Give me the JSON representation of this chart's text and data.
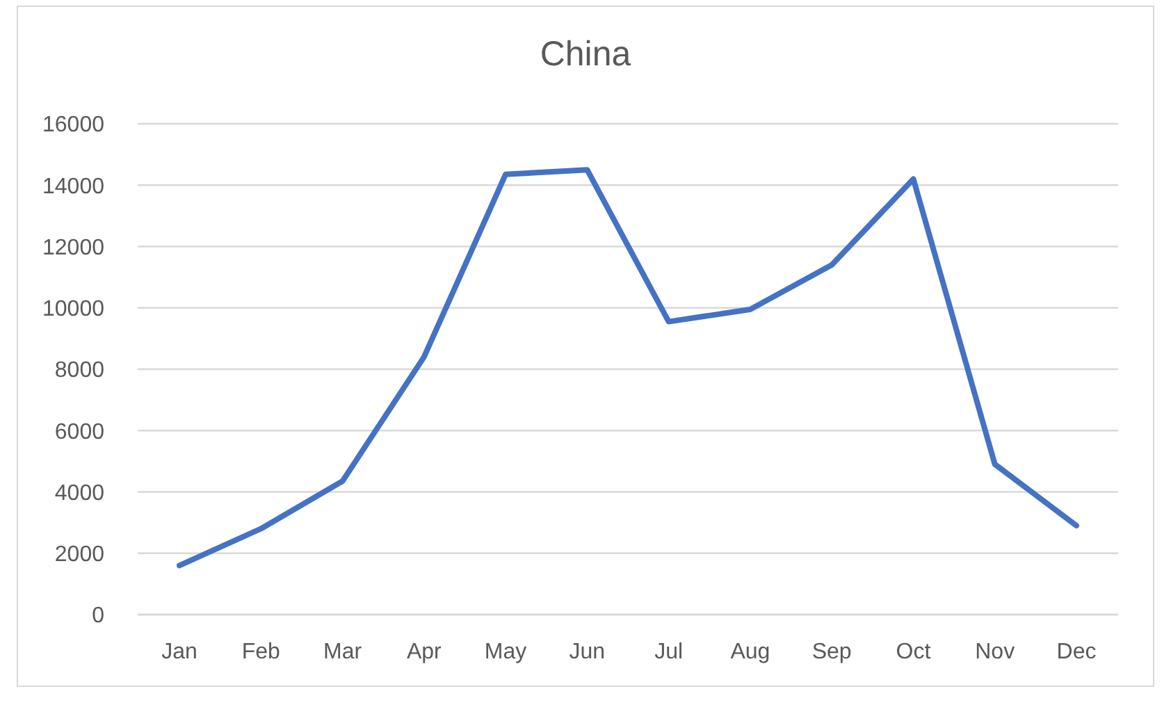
{
  "chart_data": {
    "type": "line",
    "title": "China",
    "categories": [
      "Jan",
      "Feb",
      "Mar",
      "Apr",
      "May",
      "Jun",
      "Jul",
      "Aug",
      "Sep",
      "Oct",
      "Nov",
      "Dec"
    ],
    "series": [
      {
        "color": "#4472c4",
        "values": [
          1600,
          2800,
          4350,
          8400,
          14350,
          14500,
          9550,
          9950,
          11400,
          14200,
          4900,
          2900
        ]
      }
    ],
    "ylim": [
      0,
      16000
    ],
    "yticks": [
      0,
      2000,
      4000,
      6000,
      8000,
      10000,
      12000,
      14000,
      16000
    ],
    "grid": "y",
    "marker": "none",
    "line_style": "solid"
  }
}
